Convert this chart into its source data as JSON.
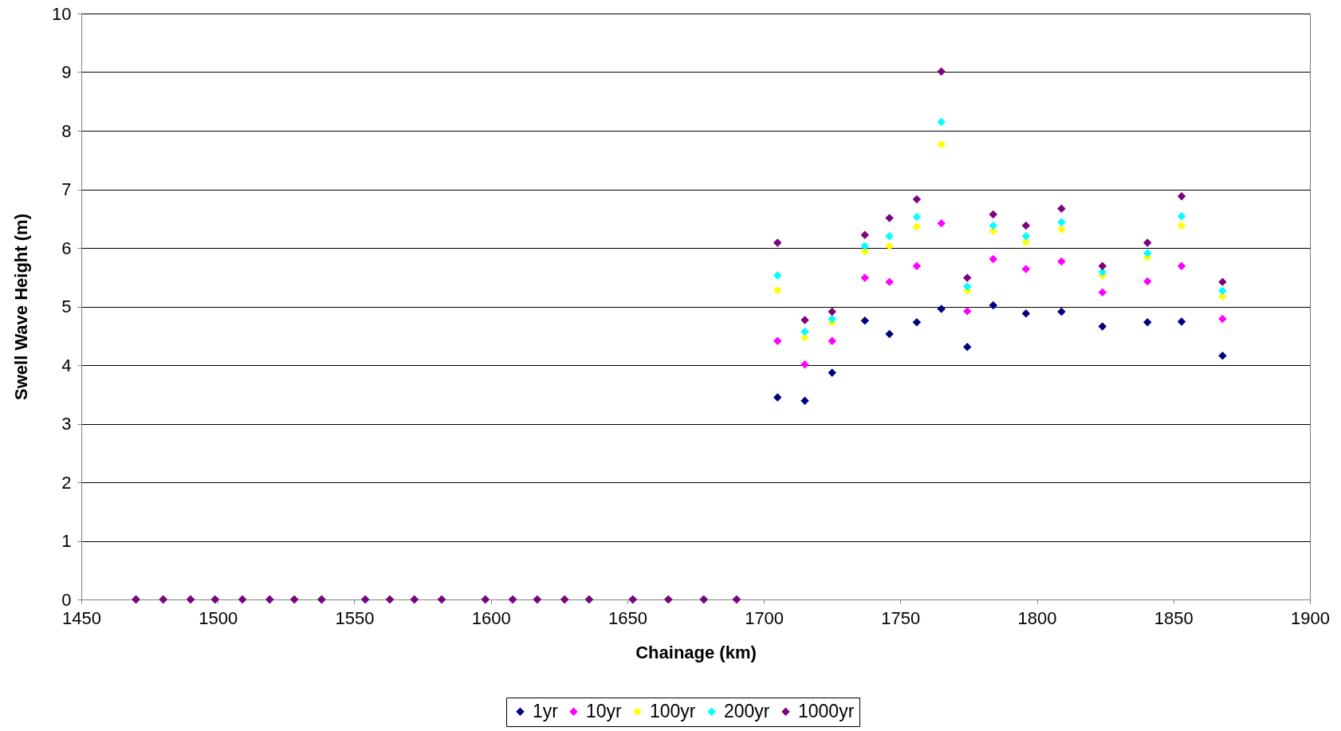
{
  "chart_data": {
    "type": "scatter",
    "xlabel": "Chainage (km)",
    "ylabel": "Swell Wave Height (m)",
    "x": [
      1470,
      1480,
      1490,
      1499,
      1509,
      1519,
      1528,
      1538,
      1554,
      1563,
      1572,
      1582,
      1598,
      1608,
      1617,
      1627,
      1636,
      1652,
      1665,
      1678,
      1690,
      1705,
      1715,
      1725,
      1737,
      1746,
      1756,
      1765,
      1774.5,
      1784,
      1796,
      1809,
      1824,
      1840.5,
      1853,
      1868
    ],
    "series": [
      {
        "name": "1yr",
        "color": "#000080",
        "values": [
          0,
          0,
          0,
          0,
          0,
          0,
          0,
          0,
          0,
          0,
          0,
          0,
          0,
          0,
          0,
          0,
          0,
          0,
          0,
          0,
          0,
          3.45,
          3.39,
          3.87,
          4.76,
          4.53,
          4.73,
          4.96,
          4.31,
          5.02,
          4.88,
          4.91,
          4.66,
          4.73,
          4.74,
          4.16
        ]
      },
      {
        "name": "10yr",
        "color": "#ff00ff",
        "values": [
          0,
          0,
          0,
          0,
          0,
          0,
          0,
          0,
          0,
          0,
          0,
          0,
          0,
          0,
          0,
          0,
          0,
          0,
          0,
          0,
          0,
          4.41,
          4.01,
          4.41,
          5.49,
          5.42,
          5.69,
          6.42,
          4.92,
          5.81,
          5.64,
          5.77,
          5.24,
          5.43,
          5.69,
          4.79
        ]
      },
      {
        "name": "100yr",
        "color": "#ffff00",
        "values": [
          0,
          0,
          0,
          0,
          0,
          0,
          0,
          0,
          0,
          0,
          0,
          0,
          0,
          0,
          0,
          0,
          0,
          0,
          0,
          0,
          0,
          5.28,
          4.47,
          4.73,
          5.94,
          6.03,
          6.36,
          7.77,
          5.27,
          6.29,
          6.1,
          6.32,
          5.53,
          5.84,
          6.38,
          5.17
        ]
      },
      {
        "name": "200yr",
        "color": "#00ffff",
        "values": [
          0,
          0,
          0,
          0,
          0,
          0,
          0,
          0,
          0,
          0,
          0,
          0,
          0,
          0,
          0,
          0,
          0,
          0,
          0,
          0,
          0,
          5.53,
          4.57,
          4.79,
          6.03,
          6.2,
          6.53,
          8.15,
          5.34,
          6.38,
          6.2,
          6.44,
          5.59,
          5.91,
          6.54,
          5.27
        ]
      },
      {
        "name": "1000yr",
        "color": "#800080",
        "values": [
          0,
          0,
          0,
          0,
          0,
          0,
          0,
          0,
          0,
          0,
          0,
          0,
          0,
          0,
          0,
          0,
          0,
          0,
          0,
          0,
          0,
          6.09,
          4.77,
          4.91,
          6.22,
          6.51,
          6.83,
          9.01,
          5.49,
          6.57,
          6.38,
          6.67,
          5.69,
          6.09,
          6.88,
          5.42
        ]
      }
    ],
    "xlim": [
      1450,
      1900
    ],
    "xticks": [
      1450,
      1500,
      1550,
      1600,
      1650,
      1700,
      1750,
      1800,
      1850,
      1900
    ],
    "ylim": [
      0,
      10
    ],
    "yticks": [
      0,
      1,
      2,
      3,
      4,
      5,
      6,
      7,
      8,
      9,
      10
    ],
    "grid": "y",
    "legend": "bottom",
    "marker": "diamond"
  }
}
